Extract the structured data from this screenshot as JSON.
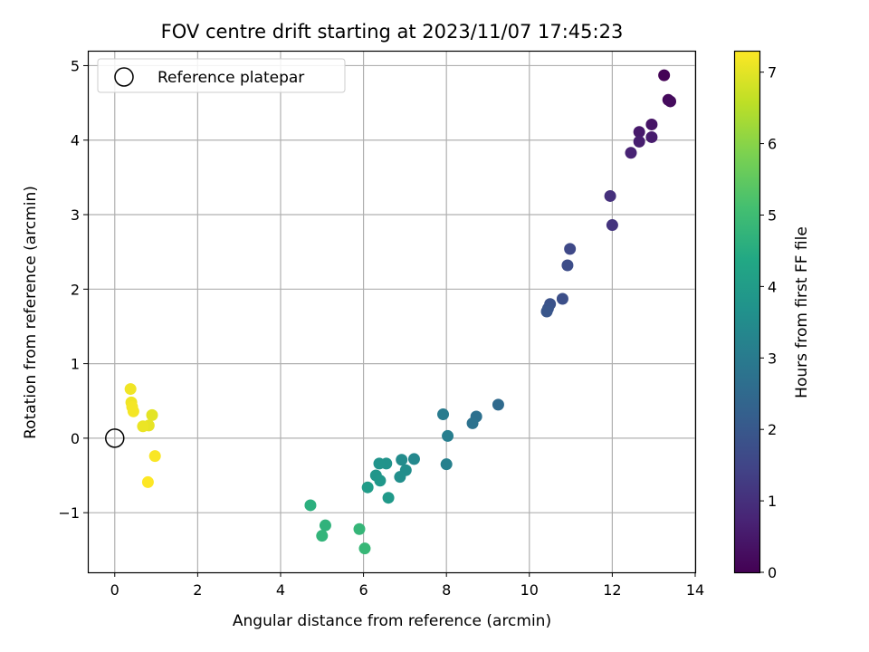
{
  "chart_data": {
    "type": "scatter",
    "title": "FOV centre drift starting at 2023/11/07 17:45:23",
    "xlabel": "Angular distance from reference (arcmin)",
    "ylabel": "Rotation from reference (arcmin)",
    "xlim": [
      -0.65,
      14.0
    ],
    "ylim": [
      -1.8,
      5.2
    ],
    "xticks": [
      0,
      2,
      4,
      6,
      8,
      10,
      12,
      14
    ],
    "yticks": [
      -1,
      0,
      1,
      2,
      3,
      4,
      5
    ],
    "xtick_labels": [
      "0",
      "2",
      "4",
      "6",
      "8",
      "10",
      "12",
      "14"
    ],
    "ytick_labels": [
      "−1",
      "0",
      "1",
      "2",
      "3",
      "4",
      "5"
    ],
    "grid": true,
    "legend_position": "top-left",
    "legend": [
      {
        "label": "Reference platepar",
        "marker": "open-circle",
        "x": 0.0,
        "y": 0.0
      }
    ],
    "colorbar": {
      "label": "Hours from first FF file",
      "colormap": "viridis",
      "range": [
        0,
        7.3
      ],
      "ticks": [
        0,
        1,
        2,
        3,
        4,
        5,
        6,
        7
      ],
      "tick_labels": [
        "0",
        "1",
        "2",
        "3",
        "4",
        "5",
        "6",
        "7"
      ]
    },
    "points": [
      {
        "x": 13.25,
        "y": 4.87,
        "c": 0.05
      },
      {
        "x": 13.35,
        "y": 4.54,
        "c": 0.15
      },
      {
        "x": 13.4,
        "y": 4.52,
        "c": 0.2
      },
      {
        "x": 12.95,
        "y": 4.21,
        "c": 0.4
      },
      {
        "x": 12.65,
        "y": 4.11,
        "c": 0.5
      },
      {
        "x": 12.95,
        "y": 4.04,
        "c": 0.55
      },
      {
        "x": 12.65,
        "y": 3.98,
        "c": 0.6
      },
      {
        "x": 12.45,
        "y": 3.83,
        "c": 0.7
      },
      {
        "x": 11.95,
        "y": 3.25,
        "c": 1.0
      },
      {
        "x": 12.0,
        "y": 2.86,
        "c": 1.1
      },
      {
        "x": 10.98,
        "y": 2.54,
        "c": 1.6
      },
      {
        "x": 10.92,
        "y": 2.32,
        "c": 1.7
      },
      {
        "x": 10.8,
        "y": 1.87,
        "c": 1.75
      },
      {
        "x": 10.5,
        "y": 1.8,
        "c": 1.85
      },
      {
        "x": 10.45,
        "y": 1.74,
        "c": 1.9
      },
      {
        "x": 10.42,
        "y": 1.7,
        "c": 1.95
      },
      {
        "x": 9.25,
        "y": 0.45,
        "c": 2.5
      },
      {
        "x": 8.72,
        "y": 0.29,
        "c": 2.7
      },
      {
        "x": 8.63,
        "y": 0.2,
        "c": 2.75
      },
      {
        "x": 7.92,
        "y": 0.32,
        "c": 3.0
      },
      {
        "x": 8.03,
        "y": 0.03,
        "c": 3.1
      },
      {
        "x": 8.0,
        "y": -0.35,
        "c": 3.15
      },
      {
        "x": 7.22,
        "y": -0.28,
        "c": 3.4
      },
      {
        "x": 6.92,
        "y": -0.29,
        "c": 3.5
      },
      {
        "x": 7.02,
        "y": -0.43,
        "c": 3.55
      },
      {
        "x": 6.88,
        "y": -0.52,
        "c": 3.6
      },
      {
        "x": 6.55,
        "y": -0.34,
        "c": 3.7
      },
      {
        "x": 6.38,
        "y": -0.34,
        "c": 3.75
      },
      {
        "x": 6.3,
        "y": -0.5,
        "c": 3.8
      },
      {
        "x": 6.4,
        "y": -0.57,
        "c": 3.85
      },
      {
        "x": 6.6,
        "y": -0.8,
        "c": 3.9
      },
      {
        "x": 6.1,
        "y": -0.66,
        "c": 4.0
      },
      {
        "x": 4.72,
        "y": -0.9,
        "c": 4.6
      },
      {
        "x": 5.08,
        "y": -1.17,
        "c": 4.7
      },
      {
        "x": 5.0,
        "y": -1.31,
        "c": 4.75
      },
      {
        "x": 5.9,
        "y": -1.22,
        "c": 4.8
      },
      {
        "x": 6.03,
        "y": -1.48,
        "c": 4.85
      },
      {
        "x": 0.9,
        "y": 0.31,
        "c": 7.0
      },
      {
        "x": 0.82,
        "y": 0.17,
        "c": 7.05
      },
      {
        "x": 0.68,
        "y": 0.16,
        "c": 7.1
      },
      {
        "x": 0.38,
        "y": 0.66,
        "c": 7.15
      },
      {
        "x": 0.4,
        "y": 0.48,
        "c": 7.15
      },
      {
        "x": 0.42,
        "y": 0.42,
        "c": 7.2
      },
      {
        "x": 0.45,
        "y": 0.36,
        "c": 7.2
      },
      {
        "x": 0.97,
        "y": -0.24,
        "c": 7.25
      },
      {
        "x": 0.8,
        "y": -0.59,
        "c": 7.3
      }
    ]
  }
}
